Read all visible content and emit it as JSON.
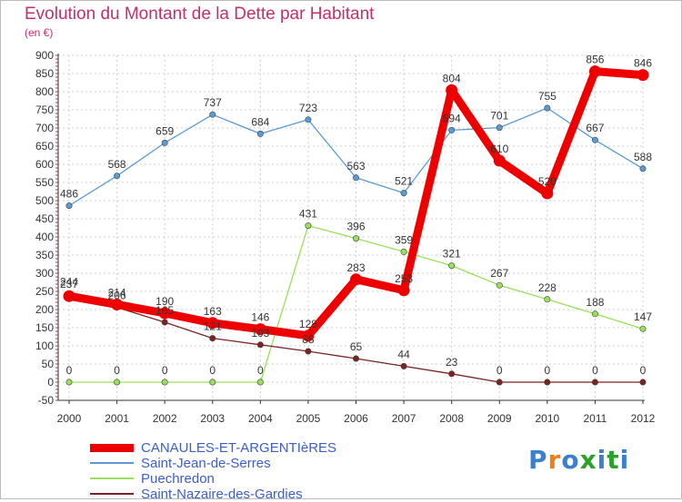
{
  "title": "Evolution du Montant de la Dette par Habitant",
  "unit": "(en €)",
  "logo": {
    "text": "Proxiti",
    "colors": [
      "#3a7fd0",
      "#f07c1a",
      "#3a7fd0",
      "#2aa12a",
      "#3a7fd0",
      "#2aa12a",
      "#3a7fd0"
    ]
  },
  "chart_data": {
    "type": "line",
    "title": "Evolution du Montant de la Dette par Habitant",
    "ylabel": "(en €)",
    "x": [
      2000,
      2001,
      2002,
      2003,
      2004,
      2005,
      2006,
      2007,
      2008,
      2009,
      2010,
      2011,
      2012
    ],
    "ylim": [
      -50,
      900
    ],
    "yticks": [
      -50,
      0,
      50,
      100,
      150,
      200,
      250,
      300,
      350,
      400,
      450,
      500,
      550,
      600,
      650,
      700,
      750,
      800,
      850,
      900
    ],
    "grid": true,
    "legend": "bottom-left",
    "series": [
      {
        "name": "CANAULES-ET-ARGENTIèRES",
        "color": "#ee0000",
        "width": 9,
        "values": [
          237,
          214,
          190,
          163,
          146,
          128,
          283,
          253,
          804,
          610,
          520,
          856,
          846
        ]
      },
      {
        "name": "Saint-Jean-de-Serres",
        "color": "#5b9bd5",
        "width": 1.3,
        "values": [
          486,
          568,
          659,
          737,
          684,
          723,
          563,
          521,
          694,
          701,
          755,
          667,
          588
        ]
      },
      {
        "name": "Puechredon",
        "color": "#99e05a",
        "width": 1.3,
        "values": [
          0,
          0,
          0,
          0,
          0,
          431,
          396,
          359,
          321,
          267,
          228,
          188,
          147
        ]
      },
      {
        "name": "Saint-Nazaire-des-Gardies",
        "color": "#7a2323",
        "width": 1.3,
        "values": [
          244,
          206,
          165,
          121,
          103,
          85,
          65,
          44,
          23,
          0,
          0,
          0,
          0
        ]
      }
    ]
  }
}
